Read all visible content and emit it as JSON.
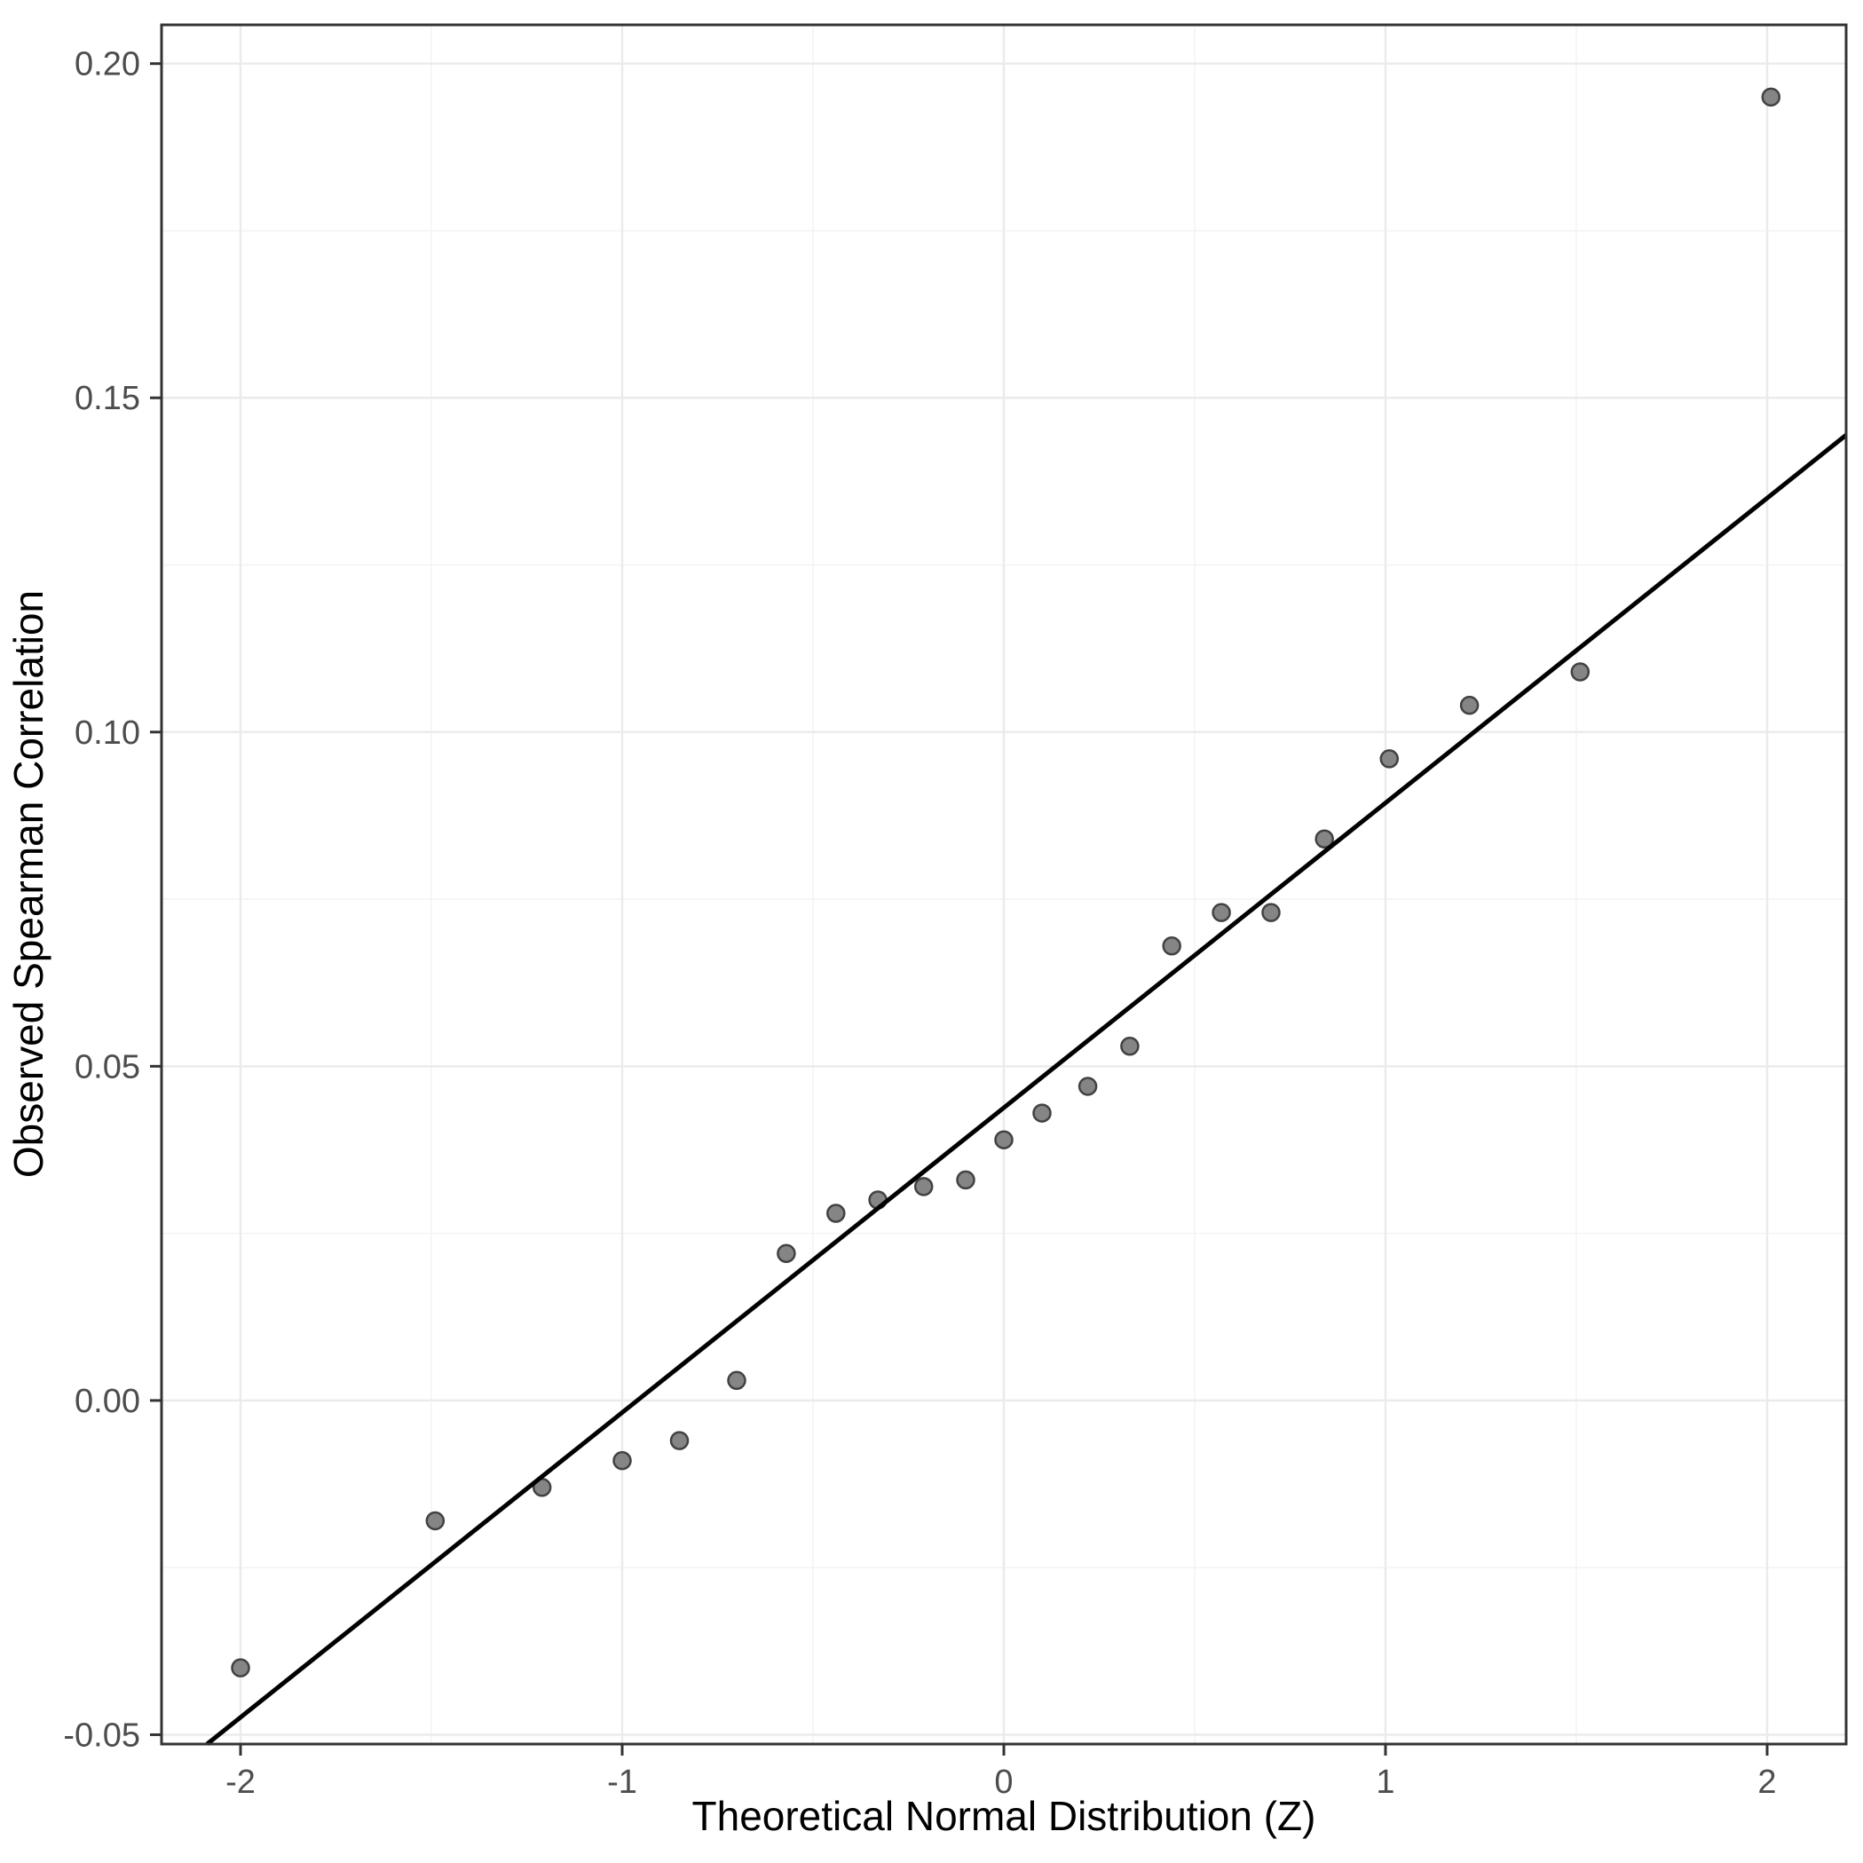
{
  "chart_data": {
    "type": "scatter",
    "title": "",
    "xlabel": "Theoretical Normal Distribution (Z)",
    "ylabel": "Observed Spearman Correlation",
    "xlim": [
      -2.207,
      2.207
    ],
    "ylim": [
      -0.0514,
      0.2058
    ],
    "grid": true,
    "legend": "none",
    "x_ticks": [
      -2,
      -1,
      0,
      1,
      2
    ],
    "x_tick_labels": [
      "-2",
      "-1",
      "0",
      "1",
      "2"
    ],
    "y_ticks": [
      0.2,
      0.15,
      0.1,
      0.05,
      0.0,
      -0.05
    ],
    "y_tick_labels": [
      "0.20",
      "0.15",
      "0.10",
      "0.05",
      "0.00",
      "-0.05"
    ],
    "x_minor_gridlines": [
      -1.5,
      -0.5,
      0.5,
      1.5
    ],
    "y_minor_gridlines": [
      0.175,
      0.125,
      0.075,
      0.025,
      -0.025
    ],
    "series": [
      {
        "name": "sample-quantiles",
        "points": [
          [
            -2.0,
            -0.04
          ],
          [
            -1.49,
            -0.018
          ],
          [
            -1.21,
            -0.013
          ],
          [
            -1.0,
            -0.009
          ],
          [
            -0.85,
            -0.006
          ],
          [
            -0.7,
            0.003
          ],
          [
            -0.57,
            0.022
          ],
          [
            -0.44,
            0.028
          ],
          [
            -0.33,
            0.03
          ],
          [
            -0.21,
            0.032
          ],
          [
            -0.1,
            0.033
          ],
          [
            0.0,
            0.039
          ],
          [
            0.1,
            0.043
          ],
          [
            0.22,
            0.047
          ],
          [
            0.33,
            0.053
          ],
          [
            0.44,
            0.068
          ],
          [
            0.57,
            0.073
          ],
          [
            0.7,
            0.073
          ],
          [
            0.84,
            0.084
          ],
          [
            1.01,
            0.096
          ],
          [
            1.22,
            0.104
          ],
          [
            1.51,
            0.109
          ],
          [
            2.01,
            0.195
          ]
        ]
      }
    ],
    "reference_line": {
      "slope": 0.0456,
      "intercept": 0.0438
    },
    "style": {
      "background": "#ffffff",
      "panel_background": "#ffffff",
      "panel_border": "#333333",
      "grid_major": "#ebebeb",
      "grid_minor": "#f4f4f4",
      "tick_color": "#333333",
      "tick_label_color": "#4d4d4d",
      "axis_title_color": "#000000",
      "point_fill": "#858585",
      "point_stroke": "#424242",
      "line_color": "#000000"
    }
  }
}
